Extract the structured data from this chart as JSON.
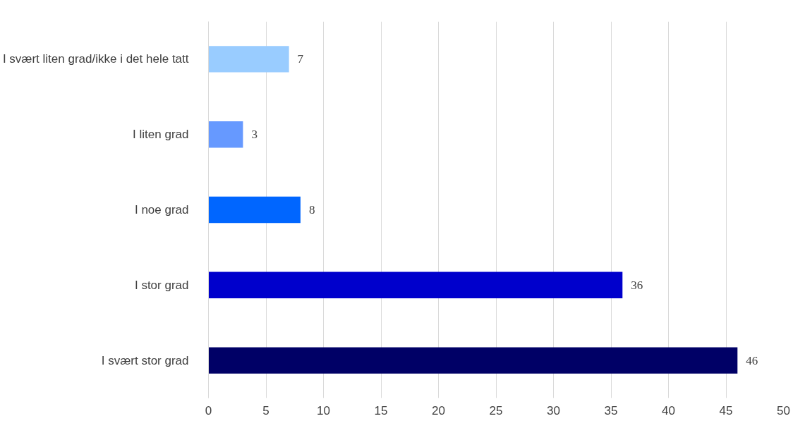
{
  "chart_data": {
    "type": "bar",
    "orientation": "horizontal",
    "categories": [
      "I svært liten grad/ikke i det hele tatt",
      "I liten grad",
      "I noe grad",
      "I stor grad",
      "I svært stor grad"
    ],
    "values": [
      7,
      3,
      8,
      36,
      46
    ],
    "colors": [
      "#99ccff",
      "#6699ff",
      "#0066ff",
      "#0000cc",
      "#000066"
    ],
    "xlim": [
      0,
      50
    ],
    "xticks": [
      0,
      5,
      10,
      15,
      20,
      25,
      30,
      35,
      40,
      45,
      50
    ],
    "grid": "x",
    "data_labels": true
  }
}
